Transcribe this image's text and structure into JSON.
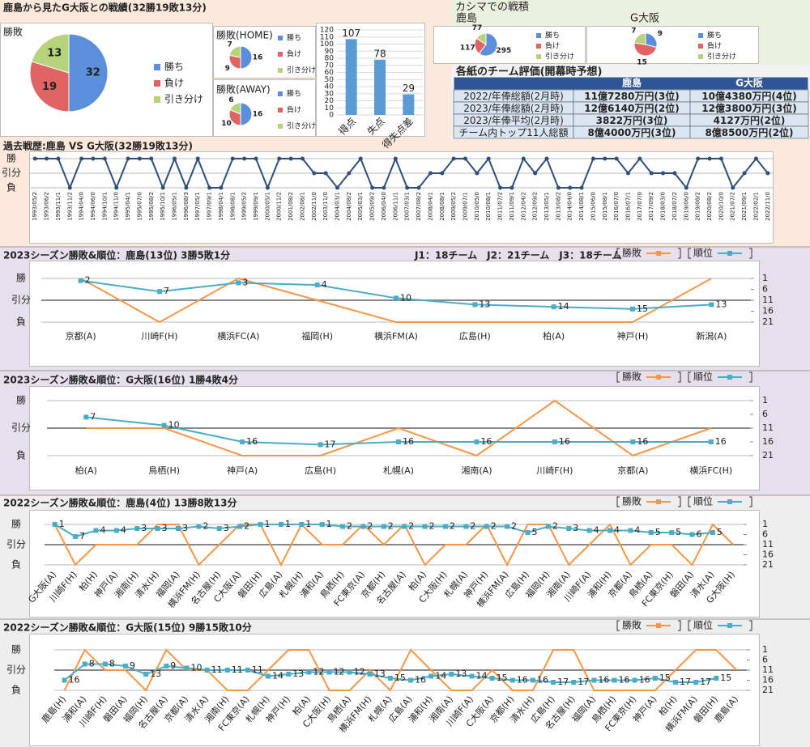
{
  "header": {
    "title": "鹿島から見たG大阪との戦績(32勝19敗13分)",
    "kashima_title": "カシマでの戦積"
  },
  "table": {
    "title": "各紙のチーム評価(開幕時予想)",
    "header": [
      "鹿島",
      "G大阪"
    ],
    "rows": [
      [
        "2022/年俸総額(2月時)",
        "11億7280万円(3位)",
        "10億4380万円(4位)"
      ],
      [
        "2023/年俸総額(2月時)",
        "12億6140万円(2位)",
        "12億3800万円(3位)"
      ],
      [
        "2023/年俸平均(2月時)",
        "3822万円(3位)",
        "4127万円(2位)"
      ],
      [
        "チーム内トップ11人総額",
        "8億4000万円(3位)",
        "8億8500万円(2位)"
      ]
    ]
  },
  "chart_data": [
    {
      "type": "pie",
      "title": "勝敗",
      "categories": [
        "勝ち",
        "負け",
        "引き分け"
      ],
      "values": [
        32,
        19,
        13
      ],
      "colors": [
        "#5b8fd9",
        "#e06464",
        "#b5d47a"
      ]
    },
    {
      "type": "pie",
      "title": "勝敗(HOME)",
      "categories": [
        "勝ち",
        "負け",
        "引き分け"
      ],
      "values": [
        16,
        9,
        7
      ],
      "colors": [
        "#5b8fd9",
        "#e06464",
        "#b5d47a"
      ]
    },
    {
      "type": "pie",
      "title": "勝敗(AWAY)",
      "categories": [
        "勝ち",
        "負け",
        "引き分け"
      ],
      "values": [
        16,
        10,
        6
      ],
      "colors": [
        "#5b8fd9",
        "#e06464",
        "#b5d47a"
      ]
    },
    {
      "type": "bar",
      "categories": [
        "得点",
        "失点",
        "得失点差"
      ],
      "values": [
        107,
        78,
        29
      ],
      "color": "#5b9bd5",
      "ylim": [
        0,
        120
      ],
      "yticks": [
        0,
        10,
        20,
        30,
        40,
        50,
        60,
        70,
        80,
        90,
        100,
        110,
        120
      ],
      "grid": true
    },
    {
      "type": "pie",
      "title": "鹿島",
      "categories": [
        "勝ち",
        "負け",
        "引き分け"
      ],
      "values": [
        295,
        117,
        77
      ],
      "colors": [
        "#5b8fd9",
        "#e06464",
        "#b5d47a"
      ]
    },
    {
      "type": "pie",
      "title": "G大阪",
      "categories": [
        "勝ち",
        "負け",
        "引き分け"
      ],
      "values": [
        9,
        15,
        7
      ],
      "colors": [
        "#5b8fd9",
        "#e06464",
        "#b5d47a"
      ]
    },
    {
      "type": "line",
      "title": "過去戦歴:鹿島 VS G大阪(32勝19敗13分)",
      "categories": [
        "1993/05/2",
        "1993/06/2",
        "1993/11/1",
        "1993/11/2",
        "1994/04/0",
        "1994/06/0",
        "1994/10/1",
        "1994/11/0",
        "1995/04/1",
        "1995/07/0",
        "1995/08/2",
        "1995/10/1",
        "1996/05/1",
        "1996/08/3",
        "1997/05/1",
        "1997/09/1",
        "1998/04/1",
        "1998/08/1",
        "1999/05/2",
        "1999/09/1",
        "2000/05/1",
        "2000/11/2",
        "2001/08/2",
        "2002/08/1",
        "2002/11/0",
        "2003/11/0",
        "2004/03/1",
        "2004/08/2",
        "2005/03/1",
        "2005/09/2",
        "2006/04/0",
        "2006/11/1",
        "2007/03/1",
        "2007/08/2",
        "2008/04/1",
        "2008/08/1",
        "2009/05/2",
        "2009/07/1",
        "2010/05/0",
        "2010/08/1",
        "2011/07/2",
        "2011/09/1",
        "2012/04/2",
        "2012/09/2",
        "2013/05/1",
        "2013/08/2",
        "2014/04/0",
        "2014/08/1",
        "2015/06/0",
        "2015/08/1",
        "2016/07/0",
        "2016/07/1",
        "2017/07/0",
        "2017/09/2",
        "2018/03/0",
        "2018/07/2",
        "2019/06/0",
        "2019/08/2",
        "2020/08/2",
        "2020/10/0",
        "2021/07/2",
        "2021/09/1",
        "2022/02/1",
        "2022/11/0"
      ],
      "values": [
        1,
        1,
        1,
        -1,
        1,
        1,
        1,
        -1,
        1,
        1,
        1,
        -1,
        1,
        -1,
        1,
        -1,
        -1,
        1,
        1,
        1,
        -1,
        1,
        1,
        1,
        0,
        0,
        -1,
        0,
        1,
        -1,
        -1,
        1,
        -1,
        -1,
        0,
        0,
        1,
        1,
        0,
        1,
        -1,
        -1,
        1,
        0,
        1,
        -1,
        -1,
        -1,
        1,
        1,
        1,
        0,
        1,
        0,
        0,
        0,
        -1,
        1,
        1,
        1,
        -1,
        0,
        1,
        0
      ],
      "color": "#2f4f7a",
      "ylim": [
        -1,
        1
      ],
      "yticks": [
        {
          "value": 1,
          "label": "勝"
        },
        {
          "value": 0,
          "label": "引分"
        },
        {
          "value": -1,
          "label": "負"
        }
      ]
    },
    {
      "type": "line",
      "title": "2023シーズン勝敗&順位：鹿島(13位) 3勝5敗1分",
      "annotation": "J1：18チーム　J2：21チーム　J3：18チーム",
      "categories": [
        "京都(A)",
        "川崎F(H)",
        "横浜FC(A)",
        "福岡(H)",
        "横浜FM(A)",
        "広島(H)",
        "柏(A)",
        "神戸(H)",
        "新潟(A)"
      ],
      "ylim": [
        -1,
        1
      ],
      "yticks": [
        {
          "value": 1,
          "label": "勝"
        },
        {
          "value": 0,
          "label": "引分"
        },
        {
          "value": -1,
          "label": "負"
        }
      ],
      "y2lim": [
        21,
        1
      ],
      "y2ticks": [
        1,
        6,
        11,
        16,
        21
      ],
      "series": [
        {
          "name": "勝敗",
          "color": "#f79646",
          "values": [
            1,
            -1,
            1,
            0,
            -1,
            -1,
            -1,
            -1,
            1
          ]
        },
        {
          "name": "順位",
          "color": "#4bacc6",
          "axis": "y2",
          "data_labels": true,
          "values": [
            2,
            7,
            3,
            4,
            10,
            13,
            14,
            15,
            13
          ]
        }
      ]
    },
    {
      "type": "line",
      "title": "2023シーズン勝敗&順位：G大阪(16位) 1勝4敗4分",
      "categories": [
        "柏(A)",
        "鳥栖(H)",
        "神戸(A)",
        "広島(H)",
        "札幌(A)",
        "湘南(A)",
        "川崎F(H)",
        "京都(A)",
        "横浜FC(H)"
      ],
      "ylim": [
        -1,
        1
      ],
      "yticks": [
        {
          "value": 1,
          "label": "勝"
        },
        {
          "value": 0,
          "label": "引分"
        },
        {
          "value": -1,
          "label": "負"
        }
      ],
      "y2lim": [
        21,
        1
      ],
      "y2ticks": [
        1,
        6,
        11,
        16,
        21
      ],
      "series": [
        {
          "name": "勝敗",
          "color": "#f79646",
          "values": [
            0,
            0,
            -1,
            -1,
            0,
            -1,
            1,
            -1,
            0
          ]
        },
        {
          "name": "順位",
          "color": "#4bacc6",
          "axis": "y2",
          "data_labels": true,
          "values": [
            7,
            10,
            16,
            17,
            16,
            16,
            16,
            16,
            16
          ]
        }
      ]
    },
    {
      "type": "line",
      "title": "2022シーズン勝敗&順位：鹿島(4位) 13勝8敗13分",
      "categories": [
        "G大阪(A)",
        "川崎F(H)",
        "柏(H)",
        "神戸(A)",
        "湘南(H)",
        "清水(H)",
        "福岡(A)",
        "横浜FM(H)",
        "名古屋(H)",
        "C大阪(A)",
        "磐田(H)",
        "広島(A)",
        "札幌(H)",
        "浦和(A)",
        "鳥栖(H)",
        "FC東京(A)",
        "京都(H)",
        "名古屋(A)",
        "柏(A)",
        "C大阪(H)",
        "札幌(A)",
        "神戸(H)",
        "横浜FM(A)",
        "広島(H)",
        "福岡(H)",
        "湘南(A)",
        "川崎F(A)",
        "浦和(H)",
        "京都(A)",
        "鳥栖(A)",
        "FC東京(H)",
        "磐田(A)",
        "清水(A)",
        "G大阪(H)"
      ],
      "ylim": [
        -1,
        1
      ],
      "yticks": [
        {
          "value": 1,
          "label": "勝"
        },
        {
          "value": 0,
          "label": "引分"
        },
        {
          "value": -1,
          "label": "負"
        }
      ],
      "y2lim": [
        21,
        1
      ],
      "y2ticks": [
        1,
        6,
        11,
        16,
        21
      ],
      "series": [
        {
          "name": "勝敗",
          "color": "#f79646",
          "values": [
            1,
            -1,
            0,
            0,
            0,
            1,
            1,
            -1,
            0,
            1,
            1,
            -1,
            1,
            0,
            0,
            1,
            0,
            1,
            -1,
            0,
            0,
            1,
            -1,
            1,
            1,
            -1,
            0,
            1,
            -1,
            0,
            0,
            -1,
            1,
            0
          ]
        },
        {
          "name": "順位",
          "color": "#4bacc6",
          "axis": "y2",
          "data_labels": true,
          "values": [
            1,
            7,
            4,
            4,
            3,
            3,
            3,
            2,
            3,
            2,
            1,
            1,
            1,
            1,
            2,
            2,
            2,
            2,
            2,
            2,
            2,
            2,
            2,
            5,
            2,
            3,
            4,
            4,
            4,
            5,
            5,
            6,
            5,
            null
          ]
        }
      ]
    },
    {
      "type": "line",
      "title": "2022シーズン勝敗&順位：G大阪(15位) 9勝15敗10分",
      "categories": [
        "鹿島(H)",
        "浦和(A)",
        "川崎F(H)",
        "磐田(A)",
        "福岡(H)",
        "名古屋(A)",
        "京都(A)",
        "清水(A)",
        "湘南(H)",
        "FC東京(A)",
        "札幌(H)",
        "神戸(H)",
        "柏(A)",
        "C大阪(H)",
        "鳥栖(A)",
        "横浜FM(H)",
        "札幌(A)",
        "広島(A)",
        "浦和(H)",
        "湘南(A)",
        "川崎F(A)",
        "C大阪(A)",
        "京都(H)",
        "清水(H)",
        "広島(H)",
        "名古屋(H)",
        "福岡(A)",
        "鳥栖(H)",
        "FC東京(H)",
        "神戸(A)",
        "柏(H)",
        "横浜FM(A)",
        "磐田(H)",
        "鹿島(A)"
      ],
      "ylim": [
        -1,
        1
      ],
      "yticks": [
        {
          "value": 1,
          "label": "勝"
        },
        {
          "value": 0,
          "label": "引分"
        },
        {
          "value": -1,
          "label": "負"
        }
      ],
      "y2lim": [
        21,
        1
      ],
      "y2ticks": [
        1,
        6,
        11,
        16,
        21
      ],
      "series": [
        {
          "name": "勝敗",
          "color": "#f79646",
          "values": [
            -1,
            1,
            0,
            0,
            -1,
            1,
            0,
            0,
            -1,
            -1,
            0,
            1,
            1,
            -1,
            -1,
            0,
            -1,
            1,
            0,
            -1,
            -1,
            0,
            -1,
            -1,
            1,
            1,
            -1,
            -1,
            -1,
            -1,
            0,
            1,
            1,
            0
          ]
        },
        {
          "name": "順位",
          "color": "#4bacc6",
          "axis": "y2",
          "data_labels": true,
          "values": [
            16,
            8,
            8,
            9,
            13,
            9,
            10,
            11,
            11,
            11,
            14,
            13,
            12,
            12,
            12,
            13,
            15,
            16,
            14,
            13,
            14,
            15,
            16,
            16,
            17,
            17,
            16,
            16,
            16,
            15,
            17,
            17,
            15,
            null
          ]
        }
      ]
    }
  ]
}
